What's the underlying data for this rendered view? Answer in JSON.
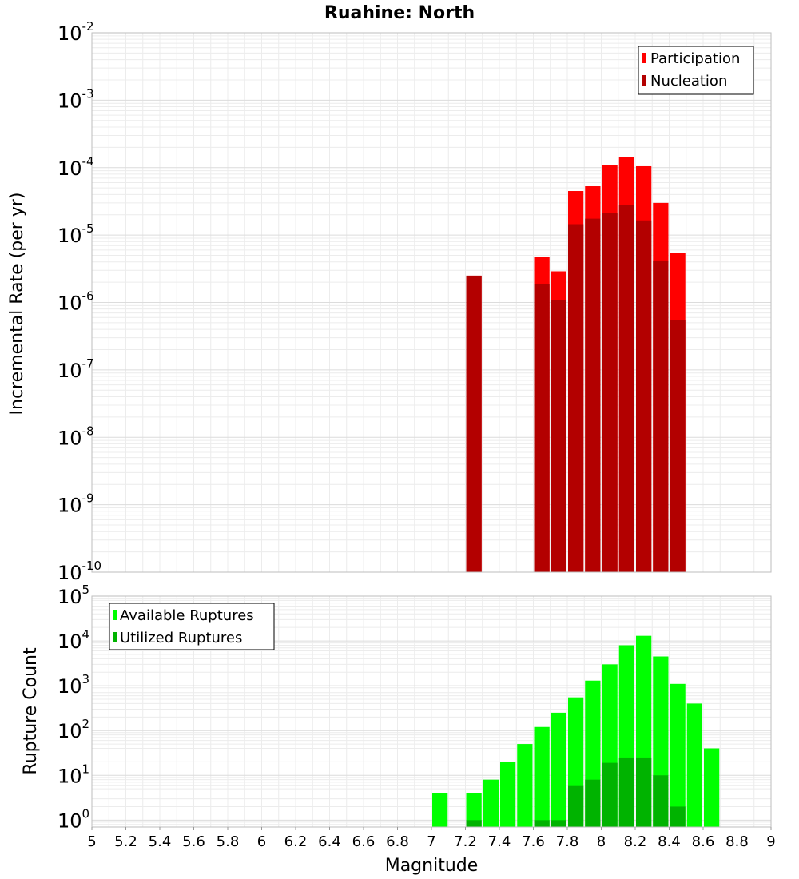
{
  "chart_data": [
    {
      "type": "bar",
      "title": "Ruahine: North",
      "xlabel": "",
      "ylabel": "Incremental Rate (per yr)",
      "yscale": "log",
      "ylim": [
        1e-10,
        0.01
      ],
      "xlim": [
        5,
        9
      ],
      "y_ticks": [
        {
          "base": "10",
          "exp": "-10"
        },
        {
          "base": "10",
          "exp": "-9"
        },
        {
          "base": "10",
          "exp": "-8"
        },
        {
          "base": "10",
          "exp": "-7"
        },
        {
          "base": "10",
          "exp": "-6"
        },
        {
          "base": "10",
          "exp": "-5"
        },
        {
          "base": "10",
          "exp": "-4"
        },
        {
          "base": "10",
          "exp": "-3"
        },
        {
          "base": "10",
          "exp": "-2"
        }
      ],
      "legend_position": "top-right",
      "grid": true,
      "bin_width": 0.1,
      "series": [
        {
          "name": "Participation",
          "color": "#ff0000",
          "points": [
            {
              "x": 7.25,
              "y": 2.5e-06
            },
            {
              "x": 7.65,
              "y": 4.7e-06
            },
            {
              "x": 7.75,
              "y": 2.9e-06
            },
            {
              "x": 7.85,
              "y": 4.5e-05
            },
            {
              "x": 7.95,
              "y": 5.3e-05
            },
            {
              "x": 8.05,
              "y": 0.000108
            },
            {
              "x": 8.15,
              "y": 0.000145
            },
            {
              "x": 8.25,
              "y": 0.000105
            },
            {
              "x": 8.35,
              "y": 3e-05
            },
            {
              "x": 8.45,
              "y": 5.5e-06
            }
          ]
        },
        {
          "name": "Nucleation",
          "color": "#b30000",
          "points": [
            {
              "x": 7.25,
              "y": 2.5e-06
            },
            {
              "x": 7.65,
              "y": 1.9e-06
            },
            {
              "x": 7.75,
              "y": 1.1e-06
            },
            {
              "x": 7.85,
              "y": 1.45e-05
            },
            {
              "x": 7.95,
              "y": 1.75e-05
            },
            {
              "x": 8.05,
              "y": 2.1e-05
            },
            {
              "x": 8.15,
              "y": 2.8e-05
            },
            {
              "x": 8.25,
              "y": 1.65e-05
            },
            {
              "x": 8.35,
              "y": 4.2e-06
            },
            {
              "x": 8.45,
              "y": 5.5e-07
            }
          ]
        }
      ]
    },
    {
      "type": "bar",
      "title": "",
      "xlabel": "Magnitude",
      "ylabel": "Rupture Count",
      "yscale": "log",
      "ylim": [
        0.7,
        100000.0
      ],
      "xlim": [
        5,
        9
      ],
      "x_ticks": [
        "5",
        "5.2",
        "5.4",
        "5.6",
        "5.8",
        "6",
        "6.2",
        "6.4",
        "6.6",
        "6.8",
        "7",
        "7.2",
        "7.4",
        "7.6",
        "7.8",
        "8",
        "8.2",
        "8.4",
        "8.6",
        "8.8",
        "9"
      ],
      "y_ticks": [
        {
          "base": "10",
          "exp": "0"
        },
        {
          "base": "10",
          "exp": "1"
        },
        {
          "base": "10",
          "exp": "2"
        },
        {
          "base": "10",
          "exp": "3"
        },
        {
          "base": "10",
          "exp": "4"
        },
        {
          "base": "10",
          "exp": "5"
        }
      ],
      "legend_position": "top-left",
      "grid": true,
      "bin_width": 0.1,
      "series": [
        {
          "name": "Available Ruptures",
          "color": "#00ff00",
          "points": [
            {
              "x": 7.05,
              "y": 4
            },
            {
              "x": 7.25,
              "y": 4
            },
            {
              "x": 7.35,
              "y": 8
            },
            {
              "x": 7.45,
              "y": 20
            },
            {
              "x": 7.55,
              "y": 50
            },
            {
              "x": 7.65,
              "y": 120
            },
            {
              "x": 7.75,
              "y": 250
            },
            {
              "x": 7.85,
              "y": 550
            },
            {
              "x": 7.95,
              "y": 1300
            },
            {
              "x": 8.05,
              "y": 3000
            },
            {
              "x": 8.15,
              "y": 8000
            },
            {
              "x": 8.25,
              "y": 13000
            },
            {
              "x": 8.35,
              "y": 4500
            },
            {
              "x": 8.45,
              "y": 1100
            },
            {
              "x": 8.55,
              "y": 400
            },
            {
              "x": 8.65,
              "y": 40
            }
          ]
        },
        {
          "name": "Utilized Ruptures",
          "color": "#00b300",
          "points": [
            {
              "x": 7.25,
              "y": 1
            },
            {
              "x": 7.65,
              "y": 1
            },
            {
              "x": 7.75,
              "y": 1
            },
            {
              "x": 7.85,
              "y": 6
            },
            {
              "x": 7.95,
              "y": 8
            },
            {
              "x": 8.05,
              "y": 19
            },
            {
              "x": 8.15,
              "y": 25
            },
            {
              "x": 8.25,
              "y": 25
            },
            {
              "x": 8.35,
              "y": 10
            },
            {
              "x": 8.45,
              "y": 2
            }
          ]
        }
      ]
    }
  ]
}
